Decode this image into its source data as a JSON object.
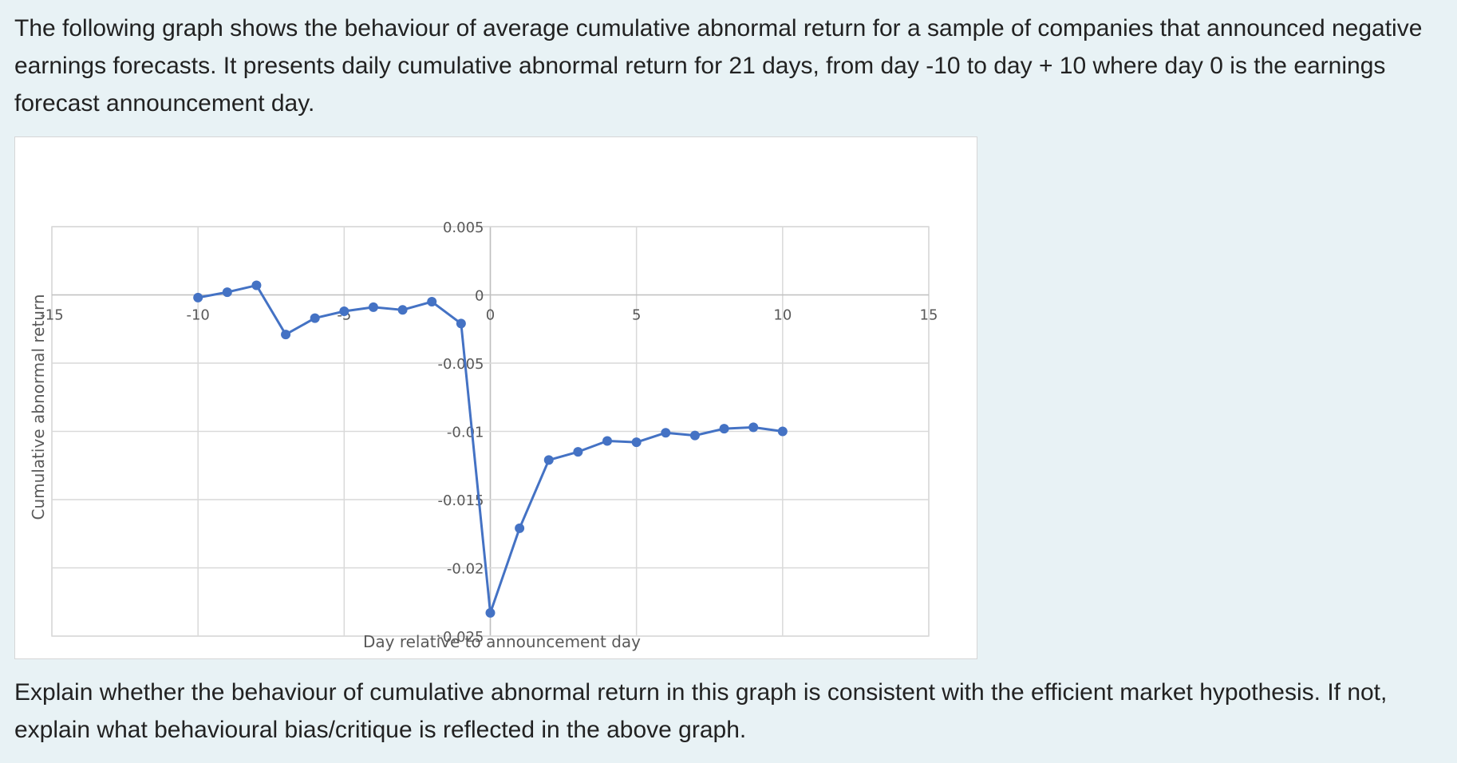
{
  "intro_text": "The following graph shows the behaviour of average cumulative abnormal return for a sample of companies that announced negative earnings forecasts. It presents daily cumulative abnormal return for 21 days, from day -10 to day + 10 where day 0 is the earnings forecast announcement day.",
  "question_text": "Explain whether the behaviour of cumulative abnormal return in this graph is consistent with the efficient market hypothesis. If not, explain what behavioural bias/critique is reflected in the above graph.",
  "chart_data": {
    "type": "scatter",
    "title": "",
    "xlabel": "Day relative to announcement day",
    "ylabel": "Cumulative abnormal return",
    "xlim": [
      -15,
      15
    ],
    "ylim": [
      -0.025,
      0.005
    ],
    "x_ticks": [
      "-15",
      "-10",
      "-5",
      "0",
      "5",
      "10",
      "15"
    ],
    "y_ticks": [
      "0.005",
      "0",
      "-0.005",
      "-0.01",
      "-0.015",
      "-0.02",
      "-0.025"
    ],
    "grid": true,
    "line_color": "#4472c4",
    "series": [
      {
        "x": [
          -10,
          -9,
          -8,
          -7,
          -6,
          -5,
          -4,
          -3,
          -2,
          -1,
          0,
          1,
          2,
          3,
          4,
          5,
          6,
          7,
          8,
          9,
          10
        ],
        "y": [
          -0.0002,
          0.0002,
          0.0007,
          -0.0029,
          -0.0017,
          -0.0012,
          -0.0009,
          -0.0011,
          -0.0005,
          -0.0021,
          -0.0233,
          -0.0171,
          -0.0121,
          -0.0115,
          -0.0107,
          -0.0108,
          -0.0101,
          -0.0103,
          -0.0098,
          -0.0097,
          -0.01
        ]
      }
    ]
  }
}
